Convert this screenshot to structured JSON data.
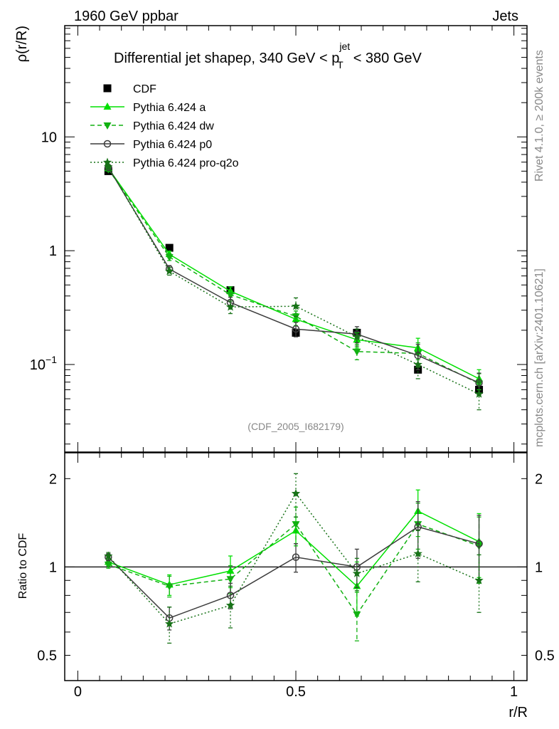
{
  "header": {
    "left": "1960 GeV ppbar",
    "right": "Jets"
  },
  "side_labels": {
    "rivet": "Rivet 4.1.0, ≥ 200k events",
    "mcplots": "mcplots.cern.ch [arXiv:2401.10621]"
  },
  "title": {
    "prefix": "Differential jet shapeρ, 340 GeV < p",
    "sup": "jet",
    "sub": "T",
    "suffix": "< 380 GeV"
  },
  "analysis_id": "(CDF_2005_I682179)",
  "chart_data": [
    {
      "type": "scatter",
      "panel": "main",
      "title": "Differential jet shapeρ, 340 GeV < p_T^jet < 380 GeV",
      "xlabel": "r/R",
      "ylabel": "ρ(r/R)",
      "yscale": "log",
      "xlim": [
        -0.03,
        1.03
      ],
      "ylim": [
        0.017,
        95
      ],
      "yticks": [
        {
          "value": 10,
          "label": "10"
        },
        {
          "value": 1,
          "label": "1"
        },
        {
          "value": 0.1,
          "label": "10−1",
          "mantissa": "10",
          "exp": "−1"
        }
      ],
      "x": [
        0.07,
        0.21,
        0.35,
        0.5,
        0.64,
        0.78,
        0.92
      ],
      "legend": {
        "position": "top-left",
        "entries": [
          "CDF",
          "Pythia 6.424 a",
          "Pythia 6.424 dw",
          "Pythia 6.424 p0",
          "Pythia 6.424 pro-q2o"
        ]
      },
      "series": [
        {
          "name": "CDF",
          "color": "#000000",
          "marker": "square",
          "line": "none",
          "values": [
            5.0,
            1.06,
            0.45,
            0.19,
            0.19,
            0.09,
            0.06
          ],
          "errors": [
            0.2,
            0.04,
            0.02,
            0.01,
            0.01,
            0.005,
            0.004
          ]
        },
        {
          "name": "Pythia 6.424 a",
          "color": "#00e000",
          "marker": "triangle-up",
          "line": "solid",
          "values": [
            5.3,
            0.93,
            0.44,
            0.25,
            0.165,
            0.14,
            0.075
          ],
          "errors": [
            0.2,
            0.06,
            0.04,
            0.03,
            0.025,
            0.03,
            0.015
          ]
        },
        {
          "name": "Pythia 6.424 dw",
          "color": "#11b111",
          "marker": "triangle-down",
          "line": "dashed",
          "values": [
            5.2,
            0.88,
            0.41,
            0.265,
            0.13,
            0.125,
            0.068
          ],
          "errors": [
            0.2,
            0.06,
            0.04,
            0.03,
            0.02,
            0.03,
            0.015
          ]
        },
        {
          "name": "Pythia 6.424 p0",
          "color": "#3c3c3c",
          "marker": "circle-open",
          "line": "solid",
          "values": [
            5.4,
            0.69,
            0.35,
            0.205,
            0.185,
            0.12,
            0.069
          ],
          "errors": [
            0.2,
            0.05,
            0.04,
            0.03,
            0.03,
            0.03,
            0.015
          ]
        },
        {
          "name": "Pythia 6.424 pro-q2o",
          "color": "#177217",
          "marker": "star",
          "line": "dotted",
          "values": [
            5.45,
            0.66,
            0.32,
            0.325,
            0.175,
            0.1,
            0.055
          ],
          "errors": [
            0.2,
            0.05,
            0.04,
            0.06,
            0.03,
            0.025,
            0.015
          ]
        }
      ]
    },
    {
      "type": "scatter",
      "panel": "ratio",
      "xlabel": "r/R",
      "ylabel": "Ratio to CDF",
      "yscale": "log",
      "xlim": [
        -0.03,
        1.03
      ],
      "ylim": [
        0.41,
        2.45
      ],
      "yticks": [
        {
          "value": 2,
          "label": "2"
        },
        {
          "value": 1,
          "label": "1"
        },
        {
          "value": 0.5,
          "label": "0.5"
        }
      ],
      "xticks": [
        {
          "value": 0,
          "label": "0"
        },
        {
          "value": 0.5,
          "label": "0.5"
        },
        {
          "value": 1,
          "label": "1"
        }
      ],
      "x": [
        0.07,
        0.21,
        0.35,
        0.5,
        0.64,
        0.78,
        0.92
      ],
      "reference": 1,
      "series": [
        {
          "name": "Pythia 6.424 a",
          "color": "#00e000",
          "marker": "triangle-up",
          "line": "solid",
          "values": [
            1.04,
            0.87,
            0.97,
            1.33,
            0.86,
            1.55,
            1.22
          ],
          "errors": [
            0.03,
            0.07,
            0.12,
            0.15,
            0.18,
            0.28,
            0.3
          ]
        },
        {
          "name": "Pythia 6.424 dw",
          "color": "#11b111",
          "marker": "triangle-down",
          "line": "dashed",
          "values": [
            1.02,
            0.86,
            0.91,
            1.4,
            0.69,
            1.4,
            1.18
          ],
          "errors": [
            0.03,
            0.07,
            0.1,
            0.2,
            0.13,
            0.25,
            0.3
          ]
        },
        {
          "name": "Pythia 6.424 p0",
          "color": "#3c3c3c",
          "marker": "circle-open",
          "line": "solid",
          "values": [
            1.08,
            0.67,
            0.8,
            1.08,
            1.0,
            1.37,
            1.2
          ],
          "errors": [
            0.03,
            0.06,
            0.08,
            0.12,
            0.15,
            0.3,
            0.3
          ]
        },
        {
          "name": "Pythia 6.424 pro-q2o",
          "color": "#177217",
          "marker": "star",
          "line": "dotted",
          "values": [
            1.09,
            0.64,
            0.74,
            1.78,
            0.95,
            1.11,
            0.9
          ],
          "errors": [
            0.03,
            0.09,
            0.12,
            0.3,
            0.12,
            0.22,
            0.2
          ]
        }
      ]
    }
  ],
  "axis_label_x": "r/R"
}
